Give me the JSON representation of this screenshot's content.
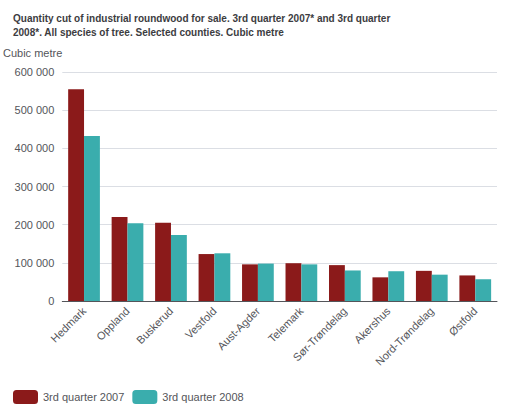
{
  "chart_data": {
    "type": "bar",
    "title": "Quantity cut of industrial roundwood for sale. 3rd quarter 2007* and 3rd quarter\n2008*. All species of tree. Selected counties. Cubic metre",
    "ylabel": "Cubic metre",
    "categories": [
      "Hedmark",
      "Oppland",
      "Buskerud",
      "Vestfold",
      "Aust-Agder",
      "Telemark",
      "Sør-Trøndelag",
      "Akershus",
      "Nord-Trøndelag",
      "Østfold"
    ],
    "series": [
      {
        "name": "3rd quarter 2007",
        "color": "#8B1A1A",
        "values": [
          555000,
          220000,
          205000,
          123000,
          96000,
          99000,
          94000,
          62000,
          79000,
          67000
        ]
      },
      {
        "name": "3rd quarter 2008",
        "color": "#3aadad",
        "values": [
          432000,
          204000,
          173000,
          125000,
          98000,
          96000,
          80000,
          78000,
          69000,
          57000
        ]
      }
    ],
    "ylim": [
      0,
      600000
    ],
    "yticks": [
      0,
      {
        "value": 100000,
        "label": "100 000"
      },
      {
        "value": 200000,
        "label": "200 000"
      },
      {
        "value": 300000,
        "label": "300 000"
      },
      {
        "value": 400000,
        "label": "400 000"
      },
      {
        "value": 500000,
        "label": "500 000"
      },
      {
        "value": 600000,
        "label": "600 000"
      }
    ],
    "grid": true,
    "legend": "lower left"
  }
}
